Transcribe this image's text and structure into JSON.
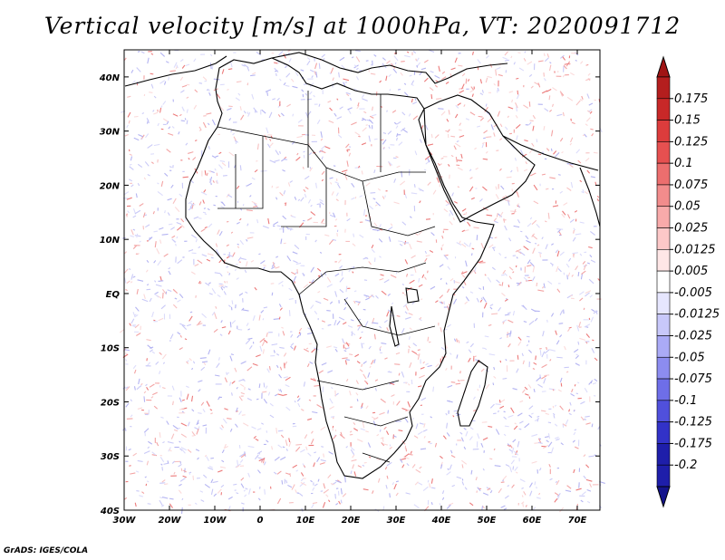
{
  "title": "Vertical velocity [m/s] at 1000hPa, VT: 2020091712",
  "credit": "GrADS: IGES/COLA",
  "map": {
    "region": "Africa and Middle East",
    "lon_range": [
      -30,
      75
    ],
    "lat_range": [
      -40,
      45
    ],
    "lon_ticks": [
      {
        "lon": -30,
        "label": "30W"
      },
      {
        "lon": -20,
        "label": "20W"
      },
      {
        "lon": -10,
        "label": "10W"
      },
      {
        "lon": 0,
        "label": "0"
      },
      {
        "lon": 10,
        "label": "10E"
      },
      {
        "lon": 20,
        "label": "20E"
      },
      {
        "lon": 30,
        "label": "30E"
      },
      {
        "lon": 40,
        "label": "40E"
      },
      {
        "lon": 50,
        "label": "50E"
      },
      {
        "lon": 60,
        "label": "60E"
      },
      {
        "lon": 70,
        "label": "70E"
      }
    ],
    "lat_ticks": [
      {
        "lat": 40,
        "label": "40N"
      },
      {
        "lat": 30,
        "label": "30N"
      },
      {
        "lat": 20,
        "label": "20N"
      },
      {
        "lat": 10,
        "label": "10N"
      },
      {
        "lat": 0,
        "label": "EQ"
      },
      {
        "lat": -10,
        "label": "10S"
      },
      {
        "lat": -20,
        "label": "20S"
      },
      {
        "lat": -30,
        "label": "30S"
      },
      {
        "lat": -40,
        "label": "40S"
      }
    ]
  },
  "colorbar": {
    "levels": [
      {
        "label": "0.175",
        "color": "#b41e1e"
      },
      {
        "label": "0.15",
        "color": "#c82828"
      },
      {
        "label": "0.125",
        "color": "#dc3c3c"
      },
      {
        "label": "0.1",
        "color": "#e65050"
      },
      {
        "label": "0.075",
        "color": "#ec6e6e"
      },
      {
        "label": "0.05",
        "color": "#f28c8c"
      },
      {
        "label": "0.025",
        "color": "#f8aaaa"
      },
      {
        "label": "0.0125",
        "color": "#fcc8c8"
      },
      {
        "label": "0.005",
        "color": "#fee6e6"
      },
      {
        "label": "-0.005",
        "color": "#ffffff"
      },
      {
        "label": "-0.0125",
        "color": "#e6e6fe"
      },
      {
        "label": "-0.025",
        "color": "#c8c8fa"
      },
      {
        "label": "-0.05",
        "color": "#aaaaf6"
      },
      {
        "label": "-0.075",
        "color": "#8c8cf0"
      },
      {
        "label": "-0.1",
        "color": "#6e6ee8"
      },
      {
        "label": "-0.125",
        "color": "#5050dc"
      },
      {
        "label": "-0.175",
        "color": "#3232c8"
      },
      {
        "label": "-0.2",
        "color": "#1e1eaa"
      }
    ],
    "top_color": "#a01414",
    "bottom_color": "#14148c"
  }
}
